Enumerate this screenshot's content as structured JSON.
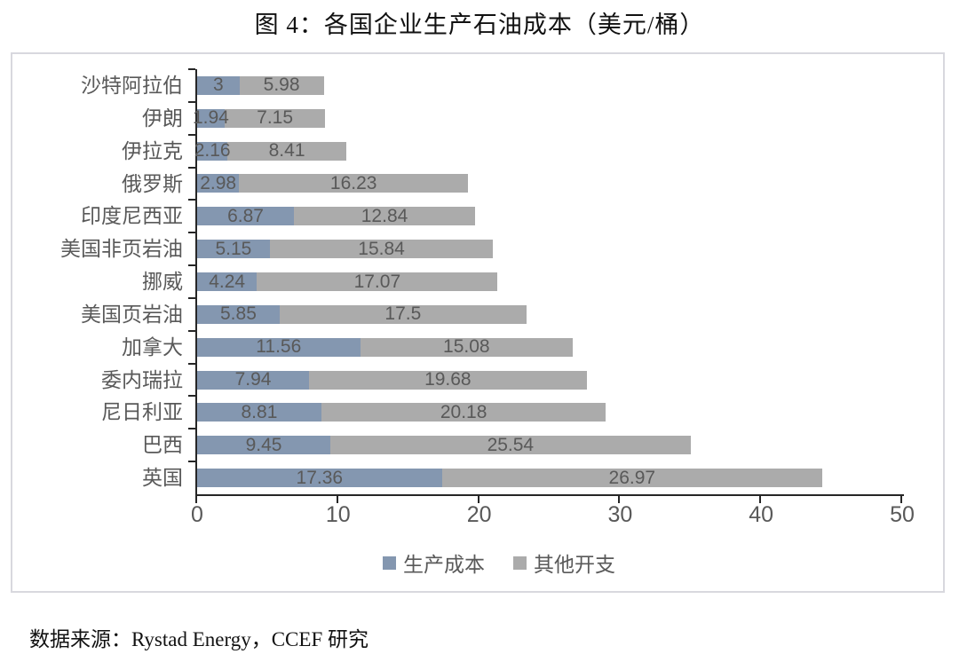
{
  "title": "图 4：各国企业生产石油成本（美元/桶）",
  "footer": "数据来源：Rystad Energy，CCEF 研究",
  "colors": {
    "production_cost": "#8497B0",
    "other_expense": "#ABABAB",
    "axis": "#262626",
    "label_text": "#595959",
    "frame_border": "#D8D8DE",
    "title_text": "#111111"
  },
  "legend": [
    {
      "label": "生产成本",
      "color": "#8497B0"
    },
    {
      "label": "其他开支",
      "color": "#ABABAB"
    }
  ],
  "chart_data": {
    "type": "bar",
    "orientation": "horizontal-stacked",
    "title": "图 4：各国企业生产石油成本（美元/桶）",
    "categories": [
      "沙特阿拉伯",
      "伊朗",
      "伊拉克",
      "俄罗斯",
      "印度尼西亚",
      "美国非页岩油",
      "挪威",
      "美国页岩油",
      "加拿大",
      "委内瑞拉",
      "尼日利亚",
      "巴西",
      "英国"
    ],
    "series": [
      {
        "name": "生产成本",
        "color": "#8497B0",
        "values": [
          3,
          1.94,
          2.16,
          2.98,
          6.87,
          5.15,
          4.24,
          5.85,
          11.56,
          7.94,
          8.81,
          9.45,
          17.36
        ]
      },
      {
        "name": "其他开支",
        "color": "#ABABAB",
        "values": [
          5.98,
          7.15,
          8.41,
          16.23,
          12.84,
          15.84,
          17.07,
          17.5,
          15.08,
          19.68,
          20.18,
          25.54,
          26.97
        ]
      }
    ],
    "xlim": [
      0,
      50
    ],
    "x_ticks": [
      0,
      10,
      20,
      30,
      40,
      50
    ],
    "grid": false,
    "legend_position": "bottom",
    "value_labels": "inside-center"
  }
}
